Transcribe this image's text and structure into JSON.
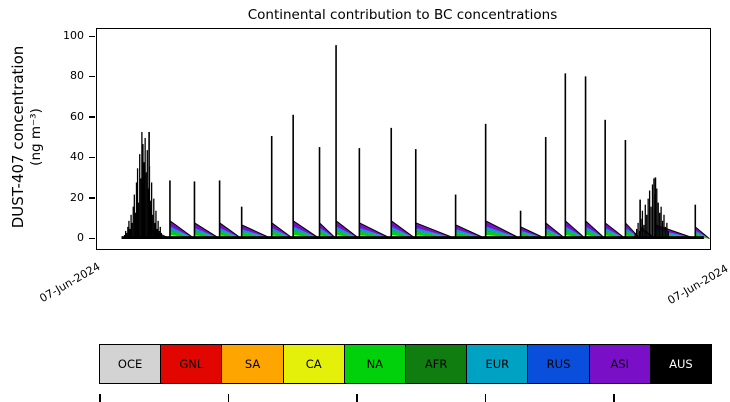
{
  "figure": {
    "title": "Continental contribution to BC concentrations",
    "ylabel_line1": "DUST-407 concentration",
    "ylabel_line2": "(ng m⁻³)",
    "x_start_label": "07-Jun-2024",
    "x_end_label": "07-Jun-2024"
  },
  "chart_data": {
    "type": "area",
    "title": "Continental contribution to BC concentrations",
    "ylabel": "DUST-407 concentration (ng m⁻³)",
    "xlabel": "",
    "ylim": [
      0,
      100
    ],
    "yticks": [
      0,
      20,
      40,
      60,
      80,
      100
    ],
    "xtick_labels": [
      "07-Jun-2024",
      "07-Jun-2024"
    ],
    "grid": false,
    "legend_position": "bottom",
    "legend": [
      {
        "label": "OCE",
        "color": "#d3d3d3",
        "text_color": "#000000"
      },
      {
        "label": "GNL",
        "color": "#e10600",
        "text_color": "#000000"
      },
      {
        "label": "SA",
        "color": "#ffa500",
        "text_color": "#000000"
      },
      {
        "label": "CA",
        "color": "#e4f00a",
        "text_color": "#000000"
      },
      {
        "label": "NA",
        "color": "#00d10a",
        "text_color": "#000000"
      },
      {
        "label": "AFR",
        "color": "#0f7d0f",
        "text_color": "#000000"
      },
      {
        "label": "EUR",
        "color": "#00a2c3",
        "text_color": "#000000"
      },
      {
        "label": "RUS",
        "color": "#0a4fdc",
        "text_color": "#000000"
      },
      {
        "label": "ASI",
        "color": "#7a0fc8",
        "text_color": "#000000"
      },
      {
        "label": "AUS",
        "color": "#000000",
        "text_color": "#ffffff"
      }
    ],
    "layers": [
      {
        "label": "OCE",
        "frac": 0.06
      },
      {
        "label": "GNL",
        "frac": 0.02
      },
      {
        "label": "SA",
        "frac": 0.05
      },
      {
        "label": "CA",
        "frac": 0.1
      },
      {
        "label": "NA",
        "frac": 0.22
      },
      {
        "label": "AFR",
        "frac": 0.04
      },
      {
        "label": "EUR",
        "frac": 0.16
      },
      {
        "label": "RUS",
        "frac": 0.05
      },
      {
        "label": "ASI",
        "frac": 0.3
      }
    ],
    "events": [
      {
        "x": 0.085,
        "spike": 53,
        "tri": 5
      },
      {
        "x": 0.119,
        "spike": 29,
        "tri": 9
      },
      {
        "x": 0.159,
        "spike": 28.5,
        "tri": 8
      },
      {
        "x": 0.2,
        "spike": 29,
        "tri": 8
      },
      {
        "x": 0.236,
        "spike": 16,
        "tri": 7
      },
      {
        "x": 0.285,
        "spike": 51,
        "tri": 8
      },
      {
        "x": 0.32,
        "spike": 61.5,
        "tri": 9
      },
      {
        "x": 0.363,
        "spike": 45.5,
        "tri": 8
      },
      {
        "x": 0.39,
        "spike": 96,
        "tri": 9
      },
      {
        "x": 0.428,
        "spike": 45,
        "tri": 8
      },
      {
        "x": 0.48,
        "spike": 55,
        "tri": 9
      },
      {
        "x": 0.52,
        "spike": 44.5,
        "tri": 8
      },
      {
        "x": 0.585,
        "spike": 22,
        "tri": 7
      },
      {
        "x": 0.634,
        "spike": 57,
        "tri": 9
      },
      {
        "x": 0.691,
        "spike": 14,
        "tri": 6
      },
      {
        "x": 0.732,
        "spike": 50.5,
        "tri": 8
      },
      {
        "x": 0.764,
        "spike": 82,
        "tri": 9
      },
      {
        "x": 0.797,
        "spike": 80.5,
        "tri": 9
      },
      {
        "x": 0.829,
        "spike": 59,
        "tri": 8
      },
      {
        "x": 0.862,
        "spike": 49,
        "tri": 8
      },
      {
        "x": 0.886,
        "spike": 19.5,
        "tri": 6
      },
      {
        "x": 0.911,
        "spike": 30.5,
        "tri": 7
      },
      {
        "x": 0.976,
        "spike": 17,
        "tri": 6
      }
    ],
    "noise_clusters": [
      {
        "start": 0.045,
        "end": 0.105,
        "heights": [
          2,
          4,
          3,
          6,
          9,
          5,
          12,
          8,
          16,
          22,
          13,
          28,
          35,
          18,
          42,
          30,
          53,
          47,
          38,
          50,
          33,
          44,
          25,
          36,
          19,
          28,
          12,
          20,
          8,
          14,
          5,
          9,
          4,
          6,
          3
        ]
      },
      {
        "start": 0.878,
        "end": 0.932,
        "heights": [
          3,
          5,
          8,
          4,
          10,
          14,
          7,
          17,
          12,
          20,
          24,
          16,
          27,
          30,
          22,
          25,
          18,
          13,
          16,
          9,
          12,
          6,
          8,
          4
        ]
      }
    ],
    "baseline_level": 1.4,
    "baseline_span": [
      0.04,
      0.99
    ],
    "bottom_ticks": [
      0.0,
      0.21,
      0.42,
      0.63,
      0.84
    ]
  }
}
